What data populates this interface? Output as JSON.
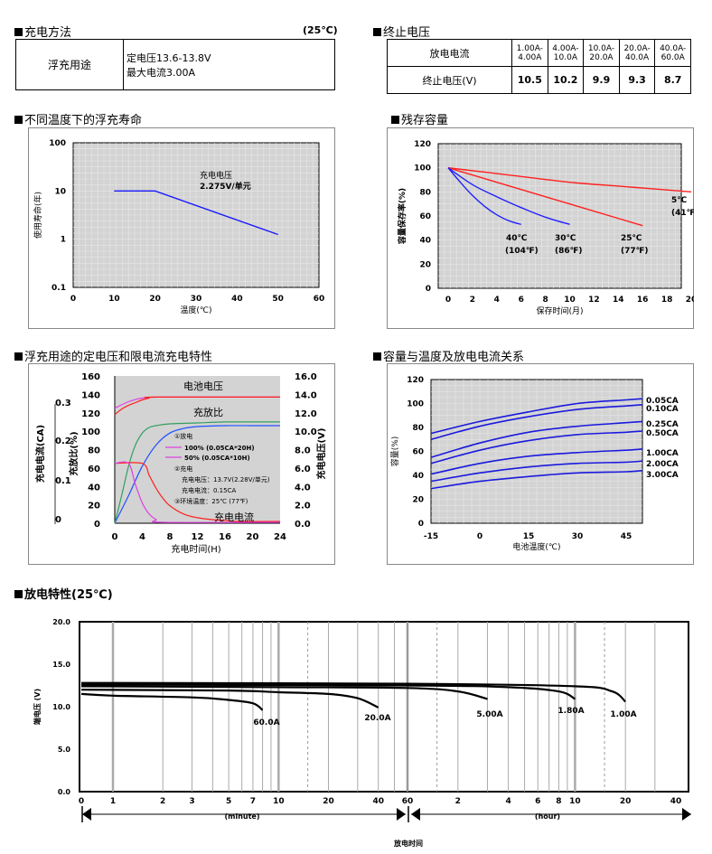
{
  "sections": {
    "charge_method": {
      "title": "充电方法",
      "temp_note": "(25℃)",
      "usage": "浮充用途",
      "voltage_line": "定电压13.6-13.8V",
      "current_line": "最大电流3.00A"
    },
    "cutoff": {
      "title": "终止电压",
      "row1_label": "放电电流",
      "row2_label": "终止电压(V)",
      "currents": [
        "1.00A-4.00A",
        "4.00A-10.0A",
        "10.0A-20.0A",
        "20.0A-40.0A",
        "40.0A-60.0A"
      ],
      "voltages": [
        "10.5",
        "10.2",
        "9.9",
        "9.3",
        "8.7"
      ]
    },
    "float_life": {
      "title": "不同温度下的浮充寿命"
    },
    "retention": {
      "title": "残存容量"
    },
    "float_charge": {
      "title": "浮充用途的定电压和限电流充电特性"
    },
    "capacity_temp": {
      "title": "容量与温度及放电电流关系"
    },
    "discharge": {
      "title": "放电特性(25℃)"
    }
  },
  "chart_data": [
    {
      "id": "float_life",
      "type": "line",
      "title": "不同温度下的浮充寿命",
      "xlabel": "温度(℃)",
      "ylabel": "使用寿命(年)",
      "xlim": [
        0,
        60
      ],
      "ylim": [
        0.1,
        100
      ],
      "yscale": "log",
      "x_ticks": [
        0,
        10,
        20,
        30,
        40,
        50,
        60
      ],
      "y_ticks": [
        0.1,
        1,
        10,
        100
      ],
      "y_tick_labels": [
        "0.1",
        "1",
        "10",
        "100"
      ],
      "annotation": [
        "充电电压",
        "2.275V/单元"
      ],
      "series": [
        {
          "name": "life",
          "x": [
            10,
            20,
            50
          ],
          "y": [
            10,
            10,
            1.25
          ],
          "color": "#1a1aff"
        }
      ]
    },
    {
      "id": "retention",
      "type": "line",
      "title": "残存容量",
      "xlabel": "保存时间(月)",
      "ylabel": "容量保存率(%)",
      "xlim": [
        0,
        20
      ],
      "ylim": [
        0,
        120
      ],
      "x_ticks": [
        0,
        2,
        4,
        6,
        8,
        10,
        12,
        14,
        16,
        18,
        20
      ],
      "y_ticks": [
        0,
        20,
        40,
        60,
        80,
        100,
        120
      ],
      "series": [
        {
          "name": "5℃",
          "alt": "(41℉)",
          "color": "#ff2020",
          "x": [
            0,
            5,
            10,
            15,
            20
          ],
          "y": [
            100,
            94,
            88,
            84,
            80
          ]
        },
        {
          "name": "25℃",
          "alt": "(77℉)",
          "color": "#ff2020",
          "x": [
            0,
            4,
            8,
            12,
            16
          ],
          "y": [
            100,
            88,
            76,
            64,
            52
          ]
        },
        {
          "name": "30℃",
          "alt": "(86℉)",
          "color": "#2020ff",
          "x": [
            0,
            2,
            4,
            6,
            8,
            10
          ],
          "y": [
            100,
            86,
            76,
            67,
            59,
            53
          ]
        },
        {
          "name": "40℃",
          "alt": "(104℉)",
          "color": "#2020ff",
          "x": [
            0,
            1,
            2,
            3,
            4,
            5,
            6
          ],
          "y": [
            100,
            88,
            77,
            68,
            61,
            56,
            53
          ]
        }
      ]
    },
    {
      "id": "float_charge",
      "type": "line",
      "title": "浮充用途的定电压和限电流充电特性",
      "xlabel": "充电时间(H)",
      "ylabel_left_outer": "充电电流(CA)",
      "ylabel_left_inner": "充放比(%)",
      "ylabel_right": "充电电压(V)",
      "xlim": [
        0,
        24
      ],
      "x_ticks": [
        0,
        4,
        8,
        12,
        16,
        20,
        24
      ],
      "y_ticks_pct": [
        0,
        20,
        40,
        60,
        80,
        100,
        120,
        140,
        160
      ],
      "y_ticks_v": [
        "0.0",
        "2.0",
        "4.0",
        "6.0",
        "8.0",
        "10.0",
        "12.0",
        "14.0",
        "16.0"
      ],
      "y_ticks_ca": [
        "0",
        "0.1",
        "0.2",
        "0.3"
      ],
      "labels": {
        "voltage": "电池电压",
        "ratio": "充放比",
        "current": "充电电流"
      },
      "legend": [
        "①放电",
        "100% (0.05CA*20H)",
        "50% (0.05CA*10H)",
        "②充电",
        "充电电压：13.7V(2.28V/单元)",
        "充电电流：0.15CA",
        "③环境温度：25℃ (77℉)"
      ],
      "series": [
        {
          "name": "电池电压 100%",
          "axis": "pct",
          "color": "#e040e0",
          "x": [
            0,
            2,
            4,
            6,
            8,
            24
          ],
          "y": [
            125,
            132,
            136,
            137,
            137,
            137
          ]
        },
        {
          "name": "电池电压 50%",
          "axis": "pct",
          "color": "#ff2020",
          "x": [
            0,
            1,
            2,
            3,
            4,
            5,
            6,
            24
          ],
          "y": [
            118,
            124,
            128,
            131,
            134,
            136,
            137,
            137
          ]
        },
        {
          "name": "充放比 100%",
          "axis": "pct",
          "color": "#2050ff",
          "x": [
            0,
            2,
            4,
            6,
            8,
            10,
            12,
            16,
            20,
            24
          ],
          "y": [
            0,
            30,
            62,
            85,
            98,
            103,
            105,
            106,
            106,
            106
          ]
        },
        {
          "name": "充放比 50%",
          "axis": "pct",
          "color": "#30a060",
          "x": [
            0,
            1,
            2,
            3,
            4,
            5,
            6,
            8,
            12,
            16,
            20,
            24
          ],
          "y": [
            0,
            30,
            62,
            85,
            98,
            104,
            106,
            108,
            109,
            110,
            110,
            110
          ]
        },
        {
          "name": "充电电流 100%",
          "axis": "pct",
          "color": "#ff2020",
          "x": [
            0,
            4,
            5,
            6,
            7,
            8,
            10,
            12,
            14,
            16,
            18,
            24
          ],
          "y": [
            65,
            65,
            52,
            38,
            27,
            19,
            10,
            6,
            4,
            3,
            2,
            2
          ]
        },
        {
          "name": "充电电流 50%",
          "axis": "pct",
          "color": "#e040e0",
          "x": [
            0,
            2,
            3,
            4,
            5,
            6,
            7,
            24
          ],
          "y": [
            65,
            65,
            42,
            22,
            10,
            4,
            1,
            1
          ]
        }
      ]
    },
    {
      "id": "capacity_temp",
      "type": "line",
      "title": "容量与温度及放电电流关系",
      "xlabel": "电池温度(℃)",
      "ylabel": "容量(%)",
      "xlim": [
        -15,
        50
      ],
      "ylim": [
        0,
        120
      ],
      "x_ticks": [
        -15,
        0,
        15,
        30,
        45
      ],
      "y_ticks": [
        0,
        20,
        40,
        60,
        80,
        100,
        120
      ],
      "series": [
        {
          "name": "0.05CA",
          "x": [
            -15,
            0,
            15,
            30,
            45,
            50
          ],
          "y": [
            75,
            85,
            93,
            100,
            103,
            104
          ]
        },
        {
          "name": "0.10CA",
          "x": [
            -15,
            0,
            15,
            30,
            45,
            50
          ],
          "y": [
            70,
            81,
            89,
            95,
            98,
            99
          ]
        },
        {
          "name": "0.25CA",
          "x": [
            -15,
            0,
            15,
            30,
            45,
            50
          ],
          "y": [
            55,
            67,
            76,
            81,
            84,
            85
          ]
        },
        {
          "name": "0.50CA",
          "x": [
            -15,
            0,
            15,
            30,
            45,
            50
          ],
          "y": [
            50,
            61,
            69,
            74,
            76,
            77
          ]
        },
        {
          "name": "1.00CA",
          "x": [
            -15,
            0,
            15,
            30,
            45,
            50
          ],
          "y": [
            41,
            50,
            56,
            59,
            61,
            62
          ]
        },
        {
          "name": "2.00CA",
          "x": [
            -15,
            0,
            15,
            30,
            45,
            50
          ],
          "y": [
            35,
            42,
            47,
            50,
            51,
            52
          ]
        },
        {
          "name": "3.00CA",
          "x": [
            -15,
            0,
            15,
            30,
            45,
            50
          ],
          "y": [
            29,
            35,
            39,
            42,
            43,
            44
          ]
        }
      ]
    },
    {
      "id": "discharge",
      "type": "line",
      "title": "放电特性(25℃)",
      "xlabel": "放电时间",
      "ylabel": "端电压 (V)",
      "ylim": [
        0,
        20
      ],
      "y_ticks": [
        "0.0",
        "5.0",
        "10.0",
        "15.0",
        "20.0"
      ],
      "x_ticks_minute": [
        "1",
        "2",
        "3",
        "5",
        "7",
        "10",
        "20",
        "40",
        "60"
      ],
      "x_ticks_hour": [
        "2",
        "4",
        "6",
        "8",
        "10",
        "20",
        "40"
      ],
      "x_tick_first": "0",
      "unit_minute": "(minute)",
      "unit_hour": "(hour)",
      "series": [
        {
          "name": "60.0A",
          "end_time_min": 8,
          "v": [
            [
              0,
              11.5
            ],
            [
              1,
              11.3
            ],
            [
              3,
              11.1
            ],
            [
              5,
              10.8
            ],
            [
              7,
              10.4
            ],
            [
              8,
              9.6
            ]
          ]
        },
        {
          "name": "20.0A",
          "end_time_min": 40,
          "v": [
            [
              0,
              12.0
            ],
            [
              5,
              11.9
            ],
            [
              10,
              11.7
            ],
            [
              20,
              11.5
            ],
            [
              30,
              11.0
            ],
            [
              40,
              9.9
            ]
          ]
        },
        {
          "name": "5.00A",
          "end_time_min": 180,
          "v": [
            [
              0,
              12.4
            ],
            [
              10,
              12.3
            ],
            [
              60,
              12.2
            ],
            [
              120,
              11.8
            ],
            [
              180,
              10.9
            ]
          ]
        },
        {
          "name": "1.80A",
          "end_time_min": 600,
          "v": [
            [
              0,
              12.6
            ],
            [
              60,
              12.5
            ],
            [
              240,
              12.3
            ],
            [
              480,
              11.8
            ],
            [
              600,
              10.9
            ]
          ]
        },
        {
          "name": "1.00A",
          "end_time_min": 1200,
          "v": [
            [
              0,
              12.8
            ],
            [
              60,
              12.7
            ],
            [
              600,
              12.4
            ],
            [
              1000,
              11.8
            ],
            [
              1200,
              10.6
            ]
          ]
        }
      ]
    }
  ]
}
